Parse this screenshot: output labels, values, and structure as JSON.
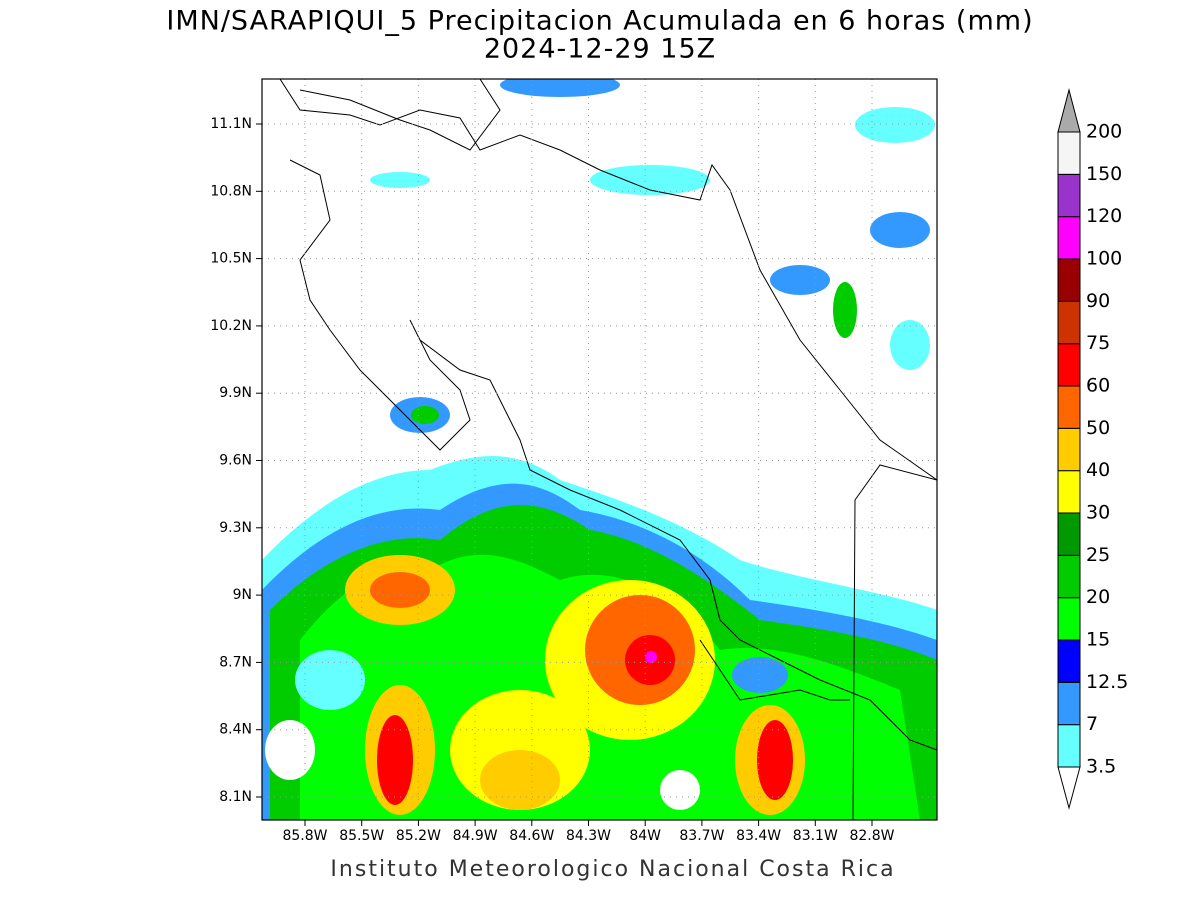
{
  "map": {
    "title": "IMN/SARAPIQUI_5 Precipitacion Acumulada en 6 horas (mm)",
    "subtitle": "2024-12-29 15Z",
    "lat_labels": [
      "11.1N",
      "10.8N",
      "10.5N",
      "10.2N",
      "9.9N",
      "9.6N",
      "9.3N",
      "9N",
      "8.7N",
      "8.4N",
      "8.1N"
    ],
    "lon_labels": [
      "85.8W",
      "85.5W",
      "85.2W",
      "84.9W",
      "84.6W",
      "84.3W",
      "84W",
      "83.7W",
      "83.4W",
      "83.1W",
      "82.8W"
    ],
    "colorbar": {
      "levels": [
        3.5,
        7,
        12.5,
        15,
        20,
        25,
        30,
        40,
        50,
        60,
        75,
        90,
        100,
        120,
        150,
        200
      ],
      "colors": [
        "#ffffff",
        "#66ffff",
        "#3399ff",
        "#0000ff",
        "#00ff00",
        "#00cc00",
        "#009900",
        "#ffff00",
        "#ffcc00",
        "#ff6600",
        "#ff0000",
        "#cc3300",
        "#990000",
        "#ff00ff",
        "#9933cc",
        "#f5f5f5",
        "#aaaaaa"
      ]
    },
    "credit": "Instituto Meteorologico Nacional Costa Rica"
  }
}
